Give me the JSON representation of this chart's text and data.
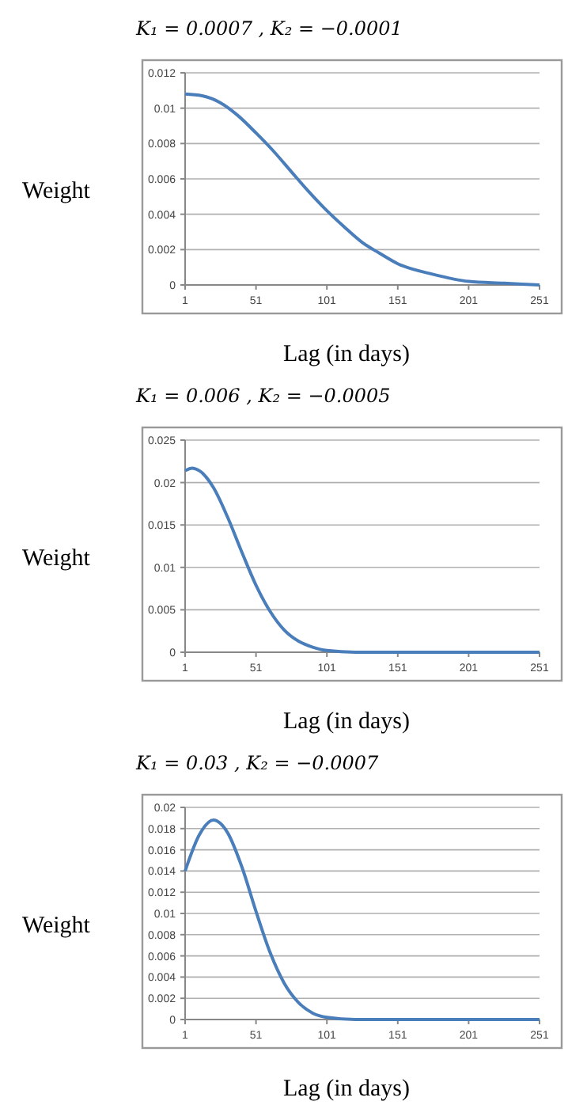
{
  "chart_data": [
    {
      "type": "line",
      "title": "K₁ = 0.0007 , K₂ = −0.0001",
      "xlabel": "Lag (in days)",
      "ylabel": "Weight",
      "xlim": [
        1,
        251
      ],
      "xticks": [
        1,
        51,
        101,
        151,
        201,
        251
      ],
      "ylim": [
        0,
        0.012
      ],
      "yticks": [
        0,
        0.002,
        0.004,
        0.006,
        0.008,
        0.01,
        0.012
      ],
      "grid": "y",
      "marker": "none",
      "line_style": "solid",
      "series": [
        {
          "color": "#4a7ebb",
          "x": [
            1,
            13,
            26,
            38,
            51,
            63,
            76,
            88,
            101,
            113,
            126,
            138,
            151,
            176,
            201,
            226,
            251
          ],
          "values": [
            0.0108,
            0.0107,
            0.0103,
            0.0096,
            0.0086,
            0.0076,
            0.0064,
            0.0053,
            0.0042,
            0.0033,
            0.0024,
            0.0018,
            0.0012,
            0.0006,
            0.0002,
            0.0001,
            0
          ]
        }
      ]
    },
    {
      "type": "line",
      "title": "K₁ = 0.006 , K₂ = −0.0005",
      "xlabel": "Lag (in days)",
      "ylabel": "Weight",
      "xlim": [
        1,
        251
      ],
      "xticks": [
        1,
        51,
        101,
        151,
        201,
        251
      ],
      "ylim": [
        0,
        0.025
      ],
      "yticks": [
        0,
        0.005,
        0.01,
        0.015,
        0.02,
        0.025
      ],
      "grid": "y",
      "marker": "none",
      "line_style": "solid",
      "series": [
        {
          "color": "#4a7ebb",
          "x": [
            1,
            6,
            11,
            21,
            31,
            41,
            51,
            61,
            71,
            81,
            91,
            101,
            121,
            151,
            201,
            251
          ],
          "values": [
            0.0214,
            0.0217,
            0.0214,
            0.0194,
            0.0159,
            0.0118,
            0.0079,
            0.0048,
            0.0026,
            0.0013,
            0.0006,
            0.0002,
            0,
            0,
            0,
            0
          ]
        }
      ]
    },
    {
      "type": "line",
      "title": "K₁ = 0.03 , K₂ = −0.0007",
      "xlabel": "Lag (in days)",
      "ylabel": "Weight",
      "xlim": [
        1,
        251
      ],
      "xticks": [
        1,
        51,
        101,
        151,
        201,
        251
      ],
      "ylim": [
        0,
        0.02
      ],
      "yticks": [
        0,
        0.002,
        0.004,
        0.006,
        0.008,
        0.01,
        0.012,
        0.014,
        0.016,
        0.018,
        0.02
      ],
      "grid": "y",
      "marker": "none",
      "line_style": "solid",
      "series": [
        {
          "color": "#4a7ebb",
          "x": [
            1,
            11,
            21,
            31,
            41,
            51,
            61,
            71,
            81,
            91,
            101,
            121,
            151,
            201,
            251
          ],
          "values": [
            0.014,
            0.0174,
            0.0188,
            0.0176,
            0.0144,
            0.0102,
            0.0063,
            0.0034,
            0.0016,
            0.0006,
            0.0002,
            0,
            0,
            0,
            0
          ]
        }
      ]
    }
  ]
}
